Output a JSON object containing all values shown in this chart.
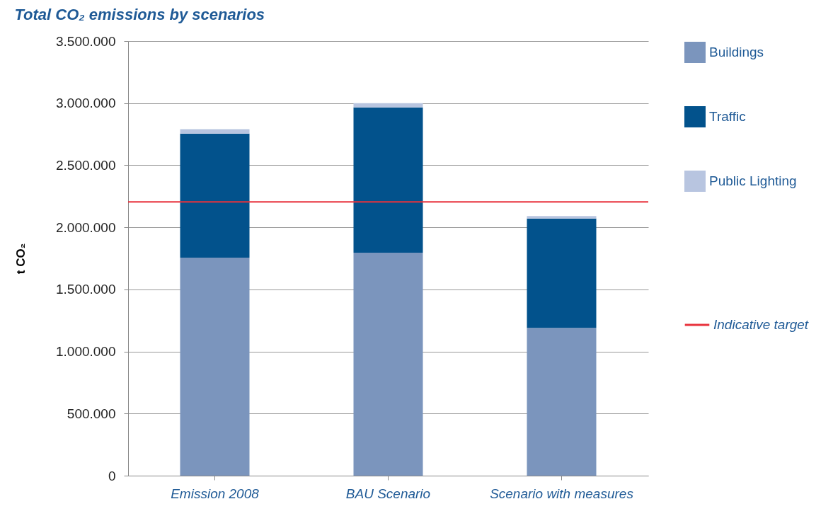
{
  "chart_data": {
    "type": "bar",
    "title": "Total CO₂ emissions by scenarios",
    "ylabel": "t CO₂",
    "categories": [
      "Emission 2008",
      "BAU Scenario",
      "Scenario with measures"
    ],
    "stacked": true,
    "series": [
      {
        "name": "Buildings",
        "color": "#7b95bd",
        "values": [
          1755000,
          1795000,
          1190000
        ]
      },
      {
        "name": "Traffic",
        "color": "#02528c",
        "values": [
          1000000,
          1170000,
          880000
        ]
      },
      {
        "name": "Public Lighting",
        "color": "#b8c5e0",
        "values": [
          35000,
          35000,
          20000
        ]
      }
    ],
    "ylim": [
      0,
      3500000
    ],
    "yticks": [
      {
        "value": 0,
        "label": "0"
      },
      {
        "value": 500000,
        "label": "500.000"
      },
      {
        "value": 1000000,
        "label": "1.000.000"
      },
      {
        "value": 1500000,
        "label": "1.500.000"
      },
      {
        "value": 2000000,
        "label": "2.000.000"
      },
      {
        "value": 2500000,
        "label": "2.500.000"
      },
      {
        "value": 3000000,
        "label": "3.000.000"
      },
      {
        "value": 3500000,
        "label": "3.500.000"
      }
    ],
    "ref_lines": [
      {
        "axis": "y",
        "value": 2205000,
        "label": "Indicative target",
        "color": "#e8323c"
      }
    ],
    "grid": "y",
    "legend": "right"
  }
}
